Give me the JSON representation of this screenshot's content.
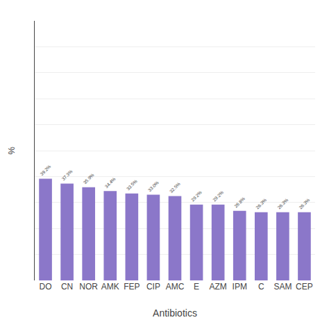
{
  "chart_data": {
    "type": "bar",
    "categories": [
      "DO",
      "CN",
      "NOR",
      "AMK",
      "FEP",
      "CIP",
      "AMC",
      "E",
      "AZM",
      "IPM",
      "C",
      "SAM",
      "CEP"
    ],
    "values": [
      39.2,
      37.3,
      35.9,
      34.4,
      33.5,
      33.0,
      32.5,
      29.2,
      29.2,
      26.8,
      26.3,
      26.3,
      26.3
    ],
    "value_labels": [
      "39.2%",
      "37.3%",
      "35.9%",
      "34.4%",
      "33.5%",
      "33.0%",
      "32.5%",
      "29.2%",
      "29.2%",
      "26.8%",
      "26.3%",
      "26.3%",
      "26.3%"
    ],
    "data_labels": true,
    "color": "#8B77C9",
    "xlabel": "Antibiotics",
    "ylabel": "%",
    "ylim": [
      0,
      100
    ],
    "yticks": [
      0,
      10,
      20,
      30,
      40,
      50,
      60,
      70,
      80,
      90,
      100
    ],
    "grid": true,
    "tick_labels": "x"
  }
}
